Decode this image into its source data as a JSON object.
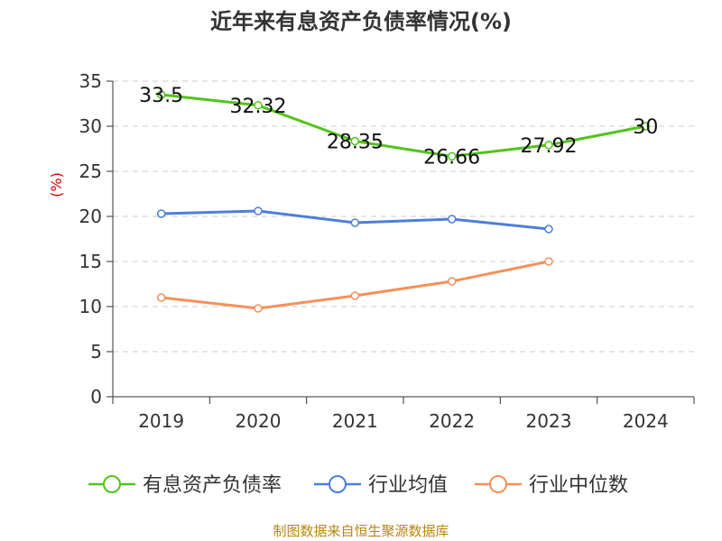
{
  "title": "近年来有息资产负债率情况(%)",
  "source": "制图数据来自恒生聚源数据库",
  "chart_data": {
    "type": "line",
    "title": "近年来有息资产负债率情况(%)",
    "ylabel": "(%)",
    "ylim": [
      0,
      35
    ],
    "yticks": [
      0,
      5,
      10,
      15,
      20,
      25,
      30,
      35
    ],
    "categories": [
      "2019",
      "2020",
      "2021",
      "2022",
      "2023",
      "2024"
    ],
    "grid": true,
    "legend": "bottom",
    "series": [
      {
        "name": "有息资产负债率",
        "color": "#52c41a",
        "values": [
          33.5,
          32.32,
          28.35,
          26.66,
          27.92,
          30
        ],
        "labels": [
          "33.5",
          "32.32",
          "28.35",
          "26.66",
          "27.92",
          "30"
        ]
      },
      {
        "name": "行业均值",
        "color": "#4e7fd8",
        "values": [
          20.3,
          20.6,
          19.3,
          19.7,
          18.6,
          null
        ]
      },
      {
        "name": "行业中位数",
        "color": "#f4915a",
        "values": [
          11.0,
          9.8,
          11.2,
          12.8,
          15.0,
          null
        ]
      }
    ]
  }
}
